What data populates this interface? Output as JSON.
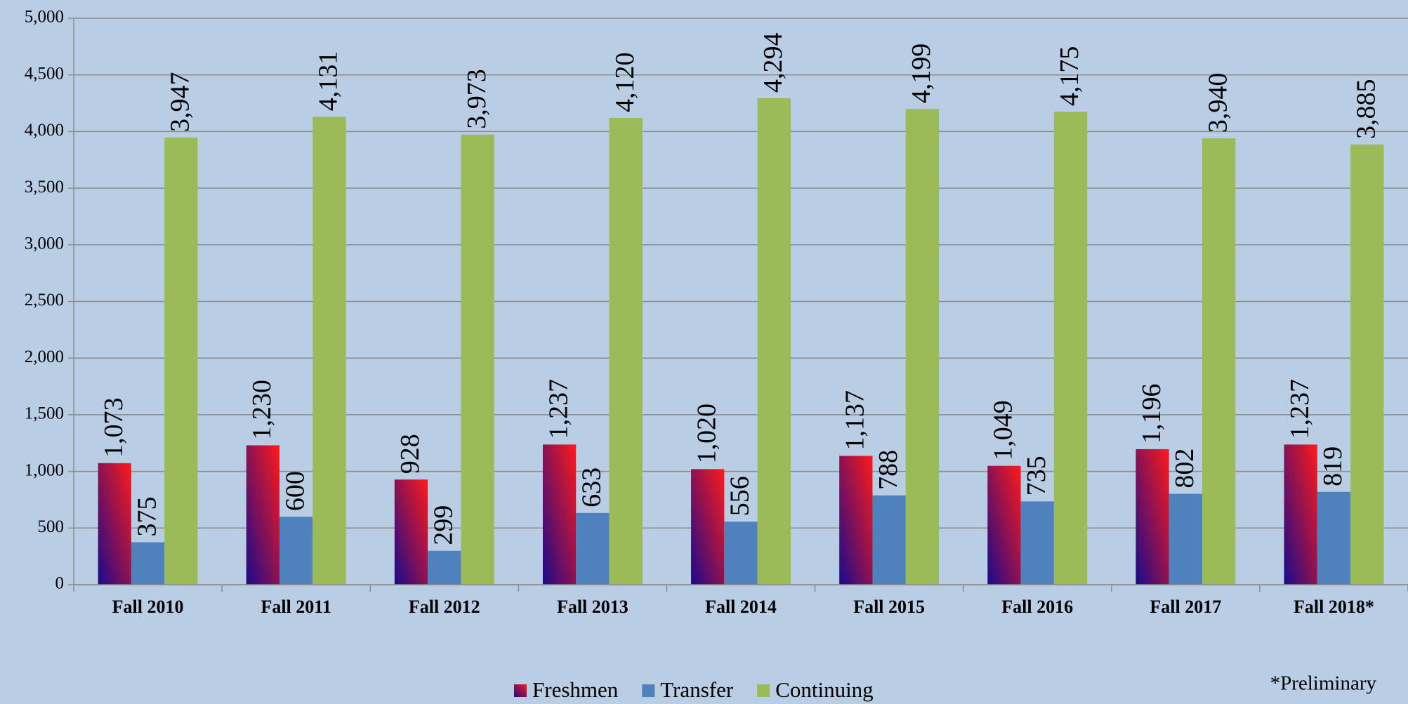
{
  "chart_data": {
    "type": "bar",
    "categories": [
      "Fall 2010",
      "Fall 2011",
      "Fall 2012",
      "Fall 2013",
      "Fall 2014",
      "Fall 2015",
      "Fall 2016",
      "Fall 2017",
      "Fall 2018*"
    ],
    "series": [
      {
        "name": "Freshmen",
        "color": "#8a0a8a",
        "gradient": [
          "#1a0a8c",
          "#ff1a1a"
        ],
        "values": [
          1073,
          1230,
          928,
          1237,
          1020,
          1137,
          1049,
          1196,
          1237
        ],
        "value_labels": [
          "1,073",
          "1,230",
          "928",
          "1,237",
          "1,020",
          "1,137",
          "1,049",
          "1,196",
          "1,237"
        ]
      },
      {
        "name": "Transfer",
        "color": "#4f81bd",
        "values": [
          375,
          600,
          299,
          633,
          556,
          788,
          735,
          802,
          819
        ],
        "value_labels": [
          "375",
          "600",
          "299",
          "633",
          "556",
          "788",
          "735",
          "802",
          "819"
        ]
      },
      {
        "name": "Continuing",
        "color": "#9bbb59",
        "values": [
          3947,
          4131,
          3973,
          4120,
          4294,
          4199,
          4175,
          3940,
          3885
        ],
        "value_labels": [
          "3,947",
          "4,131",
          "3,973",
          "4,120",
          "4,294",
          "4,199",
          "4,175",
          "3,940",
          "3,885"
        ]
      }
    ],
    "ylim": [
      0,
      5000
    ],
    "yticks": [
      0,
      500,
      {
        "value": 1000,
        "label": "1,000"
      },
      {
        "value": 1500,
        "label": "1,500"
      },
      {
        "value": 2000,
        "label": "2,000"
      },
      {
        "value": 2500,
        "label": "2,500"
      },
      {
        "value": 3000,
        "label": "3,000"
      },
      {
        "value": 3500,
        "label": "3,500"
      },
      {
        "value": 4000,
        "label": "4,000"
      },
      {
        "value": 4500,
        "label": "4,500"
      },
      {
        "value": 5000,
        "label": "5,000"
      }
    ],
    "grid": true,
    "legend": "bottom",
    "annotations": [
      "*Preliminary"
    ]
  }
}
